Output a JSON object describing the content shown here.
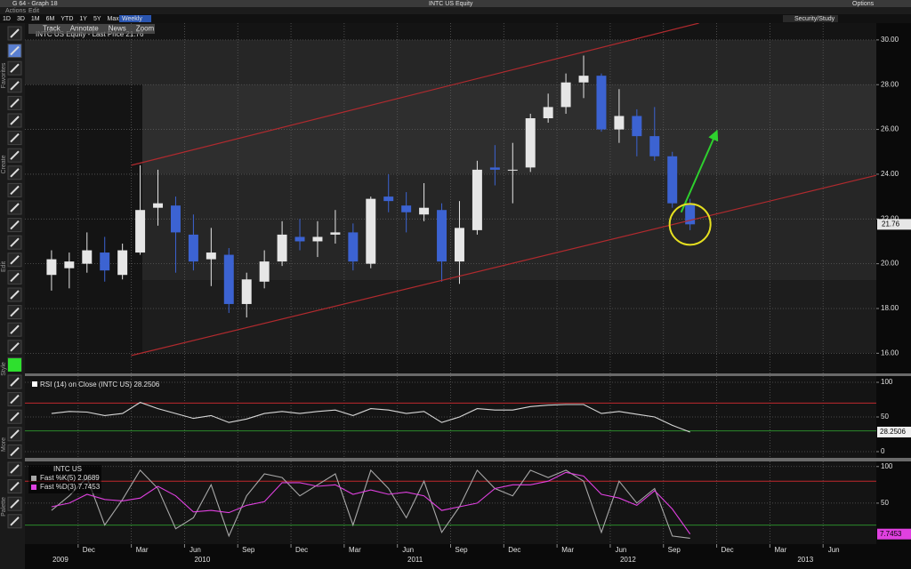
{
  "window": {
    "title": "G 64 - Graph 18",
    "security": "INTC US Equity",
    "options": "Options"
  },
  "menu": [
    "Actions",
    "Edit"
  ],
  "periods": [
    "1D",
    "3D",
    "1M",
    "6M",
    "YTD",
    "1Y",
    "5Y",
    "Max"
  ],
  "frequency": "Weekly",
  "study_button": "Security/Study",
  "chart_tools": [
    "Track",
    "Annotate",
    "News",
    "Zoom"
  ],
  "side_labels": [
    "Favorites",
    "Create",
    "Edit",
    "Style",
    "More",
    "Palette"
  ],
  "chart_data": [
    {
      "type": "candlestick",
      "legend_label": "INTC US Equity - Last Price",
      "x": [
        "2009-10",
        "2009-11",
        "2009-12",
        "2010-01",
        "2010-02",
        "2010-03",
        "2010-04",
        "2010-05",
        "2010-06",
        "2010-07",
        "2010-08",
        "2010-09",
        "2010-10",
        "2010-11",
        "2010-12",
        "2011-01",
        "2011-02",
        "2011-03",
        "2011-04",
        "2011-05",
        "2011-06",
        "2011-07",
        "2011-08",
        "2011-09",
        "2011-10",
        "2011-11",
        "2011-12",
        "2012-01",
        "2012-02",
        "2012-03",
        "2012-04",
        "2012-05",
        "2012-06",
        "2012-07",
        "2012-08",
        "2012-09",
        "2012-10"
      ],
      "open": [
        19.5,
        19.8,
        20.0,
        20.5,
        19.5,
        20.5,
        22.5,
        22.6,
        21.3,
        20.2,
        20.4,
        18.2,
        19.2,
        20.1,
        21.2,
        21.0,
        21.3,
        21.4,
        20.0,
        23.0,
        22.6,
        22.2,
        22.4,
        20.1,
        21.5,
        24.3,
        24.2,
        24.3,
        26.5,
        27.0,
        28.1,
        28.4,
        26.0,
        26.6,
        25.7,
        24.8,
        22.7
      ],
      "high": [
        20.6,
        20.5,
        21.4,
        21.2,
        20.9,
        24.4,
        24.2,
        23.0,
        22.2,
        21.6,
        20.7,
        19.6,
        20.6,
        21.9,
        22.0,
        21.9,
        22.4,
        21.8,
        23.0,
        24.0,
        23.2,
        23.6,
        22.7,
        22.8,
        24.6,
        25.3,
        25.4,
        26.7,
        27.6,
        28.5,
        29.3,
        28.5,
        27.8,
        26.9,
        27.0,
        25.0,
        22.9
      ],
      "low": [
        18.8,
        18.9,
        19.6,
        19.2,
        19.3,
        20.4,
        21.7,
        19.6,
        19.7,
        19.0,
        17.8,
        17.6,
        18.9,
        19.9,
        20.6,
        20.3,
        20.9,
        19.7,
        19.8,
        22.3,
        21.4,
        21.9,
        19.2,
        19.1,
        21.3,
        23.5,
        22.7,
        24.1,
        26.3,
        26.7,
        27.4,
        25.9,
        25.4,
        24.8,
        24.6,
        22.5,
        21.5
      ],
      "close": [
        20.2,
        20.1,
        20.6,
        19.7,
        20.6,
        22.4,
        22.7,
        21.4,
        20.1,
        20.5,
        18.2,
        19.3,
        20.1,
        21.3,
        21.0,
        21.2,
        21.4,
        20.1,
        22.9,
        22.8,
        22.3,
        22.5,
        20.1,
        21.6,
        24.2,
        24.2,
        24.2,
        26.5,
        27.0,
        28.1,
        28.4,
        26.0,
        26.6,
        25.7,
        24.8,
        22.7,
        21.76
      ],
      "up_color": "#e6e6e6",
      "down_color": "#3c63d2",
      "ylim": [
        15.1,
        30.75
      ],
      "yticks": [
        {
          "value": 16,
          "label": "16.00"
        },
        {
          "value": 18,
          "label": "18.00"
        },
        {
          "value": 20,
          "label": "20.00"
        },
        {
          "value": 22,
          "label": "22.00"
        },
        {
          "value": 24,
          "label": "24.00"
        },
        {
          "value": 26,
          "label": "26.00"
        },
        {
          "value": 28,
          "label": "28.00"
        },
        {
          "value": 30,
          "label": "30.00"
        }
      ],
      "grid": true,
      "channel_lines": [
        {
          "x": [
            "2010-03",
            "2012-11"
          ],
          "y": [
            24.4,
            30.75
          ],
          "color": "#b02a2e"
        },
        {
          "x": [
            "2010-03",
            "2013-09"
          ],
          "y": [
            15.9,
            23.95
          ],
          "color": "#b02a2e"
        }
      ],
      "arrow": {
        "x": [
          "2012-10",
          "2012-12"
        ],
        "y": [
          22.3,
          25.9
        ],
        "color": "#2ed02e"
      }
    },
    {
      "type": "line",
      "x": [
        "2009-10",
        "2009-11",
        "2009-12",
        "2010-01",
        "2010-02",
        "2010-03",
        "2010-04",
        "2010-05",
        "2010-06",
        "2010-07",
        "2010-08",
        "2010-09",
        "2010-10",
        "2010-11",
        "2010-12",
        "2011-01",
        "2011-02",
        "2011-03",
        "2011-04",
        "2011-05",
        "2011-06",
        "2011-07",
        "2011-08",
        "2011-09",
        "2011-10",
        "2011-11",
        "2011-12",
        "2012-01",
        "2012-02",
        "2012-03",
        "2012-04",
        "2012-05",
        "2012-06",
        "2012-07",
        "2012-08",
        "2012-09",
        "2012-10"
      ],
      "series": [
        {
          "name": "RSI (14) on Close (INTC US)",
          "color": "#d8d8d8",
          "values": [
            55,
            58,
            57,
            52,
            55,
            71,
            62,
            55,
            48,
            52,
            42,
            47,
            55,
            58,
            55,
            58,
            60,
            52,
            62,
            60,
            55,
            58,
            42,
            50,
            62,
            60,
            60,
            65,
            67,
            68,
            68,
            55,
            58,
            54,
            50,
            38,
            28.2506
          ]
        }
      ],
      "ylim": [
        -9,
        109
      ],
      "yticks": [
        0,
        50,
        100
      ],
      "grid": true,
      "hlines": [
        {
          "value": 70,
          "color": "#c0282d"
        },
        {
          "value": 30,
          "color": "#2a8a2a"
        }
      ]
    },
    {
      "type": "line",
      "title": "INTC US",
      "x": [
        "2009-10",
        "2009-11",
        "2009-12",
        "2010-01",
        "2010-02",
        "2010-03",
        "2010-04",
        "2010-05",
        "2010-06",
        "2010-07",
        "2010-08",
        "2010-09",
        "2010-10",
        "2010-11",
        "2010-12",
        "2011-01",
        "2011-02",
        "2011-03",
        "2011-04",
        "2011-05",
        "2011-06",
        "2011-07",
        "2011-08",
        "2011-09",
        "2011-10",
        "2011-11",
        "2011-12",
        "2012-01",
        "2012-02",
        "2012-03",
        "2012-04",
        "2012-05",
        "2012-06",
        "2012-07",
        "2012-08",
        "2012-09",
        "2012-10"
      ],
      "series": [
        {
          "name": "Fast %K(5)",
          "color": "#a8a8a8",
          "values": [
            40,
            60,
            85,
            20,
            55,
            95,
            70,
            15,
            30,
            75,
            5,
            60,
            90,
            85,
            60,
            75,
            90,
            20,
            95,
            70,
            30,
            80,
            10,
            45,
            95,
            70,
            60,
            95,
            85,
            95,
            80,
            10,
            80,
            50,
            70,
            5,
            2.0689
          ]
        },
        {
          "name": "Fast %D(3)",
          "color": "#e040e0",
          "values": [
            45,
            50,
            62,
            55,
            53,
            57,
            73,
            60,
            38,
            40,
            37,
            47,
            52,
            78,
            78,
            73,
            75,
            62,
            68,
            62,
            65,
            60,
            40,
            45,
            50,
            70,
            75,
            75,
            80,
            92,
            87,
            62,
            57,
            47,
            67,
            42,
            7.7453
          ]
        }
      ],
      "ylim": [
        -6,
        107
      ],
      "yticks": [
        50,
        100
      ],
      "grid": true,
      "hlines": [
        {
          "value": 80,
          "color": "#c0282d"
        },
        {
          "value": 20,
          "color": "#2a8a2a"
        }
      ],
      "xlim": [
        "2009-09",
        "2013-09"
      ],
      "xticks": [
        {
          "value": "2009-12",
          "label": "Dec"
        },
        {
          "value": "2010-03",
          "label": "Mar"
        },
        {
          "value": "2010-06",
          "label": "Jun"
        },
        {
          "value": "2010-09",
          "label": "Sep"
        },
        {
          "value": "2010-12",
          "label": "Dec"
        },
        {
          "value": "2011-03",
          "label": "Mar"
        },
        {
          "value": "2011-06",
          "label": "Jun"
        },
        {
          "value": "2011-09",
          "label": "Sep"
        },
        {
          "value": "2011-12",
          "label": "Dec"
        },
        {
          "value": "2012-03",
          "label": "Mar"
        },
        {
          "value": "2012-06",
          "label": "Jun"
        },
        {
          "value": "2012-09",
          "label": "Sep"
        },
        {
          "value": "2012-12",
          "label": "Dec"
        },
        {
          "value": "2013-03",
          "label": "Mar"
        },
        {
          "value": "2013-06",
          "label": "Jun"
        }
      ],
      "year_ticks": [
        "2009",
        "2010",
        "2011",
        "2012",
        "2013"
      ]
    }
  ]
}
